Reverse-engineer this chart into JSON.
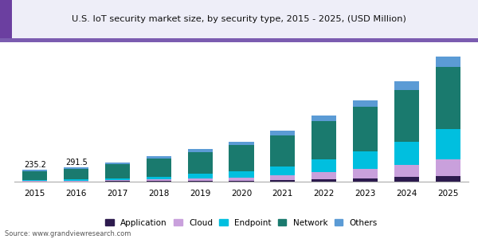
{
  "title": "U.S. IoT security market size, by security type, 2015 - 2025, (USD Million)",
  "years": [
    2015,
    2016,
    2017,
    2018,
    2019,
    2020,
    2021,
    2022,
    2023,
    2024,
    2025
  ],
  "segments": {
    "Application": [
      5,
      7,
      10,
      14,
      18,
      22,
      35,
      55,
      65,
      90,
      120
    ],
    "Cloud": [
      10,
      14,
      20,
      30,
      50,
      65,
      95,
      145,
      185,
      245,
      330
    ],
    "Endpoint": [
      15,
      20,
      32,
      55,
      85,
      120,
      175,
      255,
      355,
      465,
      615
    ],
    "Network": [
      175,
      220,
      290,
      360,
      440,
      530,
      630,
      760,
      900,
      1050,
      1250
    ],
    "Others": [
      30,
      30,
      38,
      48,
      60,
      75,
      95,
      115,
      140,
      170,
      210
    ]
  },
  "colors": {
    "Application": "#2d1b4e",
    "Cloud": "#c9a0dc",
    "Endpoint": "#00bfdf",
    "Network": "#1a7a6e",
    "Others": "#5b9bd5"
  },
  "annotations": {
    "2015": "235.2",
    "2016": "291.5"
  },
  "source": "Source: www.grandviewresearch.com",
  "title_accent_color": "#6b3fa0",
  "title_line_color": "#7b5cb0",
  "background_color": "#ffffff"
}
